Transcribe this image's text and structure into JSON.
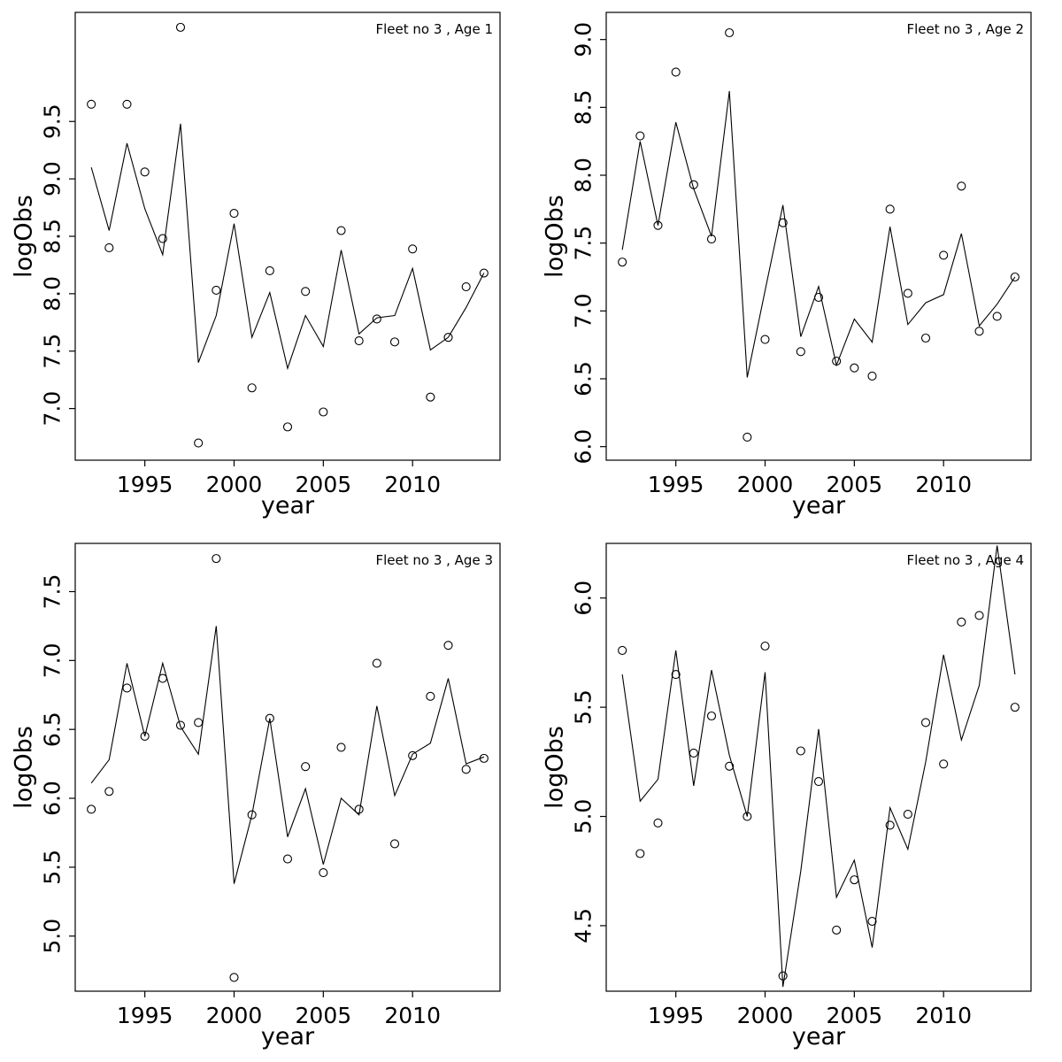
{
  "page": {
    "background": "#ffffff",
    "foreground": "#000000"
  },
  "chart_data": [
    {
      "type": "line",
      "title": "Fleet no 3 , Age 1",
      "xlabel": "year",
      "ylabel": "logObs",
      "grid": false,
      "legend": "none",
      "xlim": [
        1991.1,
        2014.9
      ],
      "ylim": [
        6.55,
        10.45
      ],
      "xticks": [
        1995,
        2000,
        2005,
        2010
      ],
      "yticks": [
        7.0,
        7.5,
        8.0,
        8.5,
        9.0,
        9.5
      ],
      "x": [
        1992,
        1993,
        1994,
        1995,
        1996,
        1997,
        1998,
        1999,
        2000,
        2001,
        2002,
        2003,
        2004,
        2005,
        2006,
        2007,
        2008,
        2009,
        2010,
        2011,
        2012,
        2013,
        2014
      ],
      "series": [
        {
          "name": "observed",
          "type": "scatter",
          "marker": "open-circle",
          "values": [
            9.65,
            8.4,
            9.65,
            9.06,
            8.48,
            10.32,
            6.7,
            8.03,
            8.7,
            7.18,
            8.2,
            6.84,
            8.02,
            6.97,
            8.55,
            7.59,
            7.78,
            7.58,
            8.39,
            7.1,
            7.62,
            8.06,
            8.18
          ]
        },
        {
          "name": "fitted",
          "type": "line",
          "values": [
            9.1,
            8.55,
            9.31,
            8.74,
            8.34,
            9.48,
            7.4,
            7.81,
            8.61,
            7.62,
            8.01,
            7.35,
            7.81,
            7.54,
            8.38,
            7.65,
            7.79,
            7.81,
            8.22,
            7.51,
            7.62,
            7.88,
            8.18
          ]
        }
      ]
    },
    {
      "type": "line",
      "title": "Fleet no 3 , Age 2",
      "xlabel": "year",
      "ylabel": "logObs",
      "grid": false,
      "legend": "none",
      "xlim": [
        1991.1,
        2014.9
      ],
      "ylim": [
        5.9,
        9.2
      ],
      "xticks": [
        1995,
        2000,
        2005,
        2010
      ],
      "yticks": [
        6.0,
        6.5,
        7.0,
        7.5,
        8.0,
        8.5,
        9.0
      ],
      "x": [
        1992,
        1993,
        1994,
        1995,
        1996,
        1997,
        1998,
        1999,
        2000,
        2001,
        2002,
        2003,
        2004,
        2005,
        2006,
        2007,
        2008,
        2009,
        2010,
        2011,
        2012,
        2013,
        2014
      ],
      "series": [
        {
          "name": "observed",
          "type": "scatter",
          "marker": "open-circle",
          "values": [
            7.36,
            8.29,
            7.63,
            8.76,
            7.93,
            7.53,
            9.05,
            6.07,
            6.79,
            7.65,
            6.7,
            7.1,
            6.63,
            6.58,
            6.52,
            7.75,
            7.13,
            6.8,
            7.41,
            7.92,
            6.85,
            6.96,
            7.25
          ]
        },
        {
          "name": "fitted",
          "type": "line",
          "values": [
            7.45,
            8.25,
            7.63,
            8.39,
            7.9,
            7.55,
            8.62,
            6.51,
            7.15,
            7.78,
            6.81,
            7.18,
            6.6,
            6.94,
            6.77,
            7.62,
            6.9,
            7.06,
            7.12,
            7.57,
            6.89,
            7.05,
            7.25
          ]
        }
      ]
    },
    {
      "type": "line",
      "title": "Fleet no 3 , Age 3",
      "xlabel": "year",
      "ylabel": "logObs",
      "grid": false,
      "legend": "none",
      "xlim": [
        1991.1,
        2014.9
      ],
      "ylim": [
        4.6,
        7.85
      ],
      "xticks": [
        1995,
        2000,
        2005,
        2010
      ],
      "yticks": [
        5.0,
        5.5,
        6.0,
        6.5,
        7.0,
        7.5
      ],
      "x": [
        1992,
        1993,
        1994,
        1995,
        1996,
        1997,
        1998,
        1999,
        2000,
        2001,
        2002,
        2003,
        2004,
        2005,
        2006,
        2007,
        2008,
        2009,
        2010,
        2011,
        2012,
        2013,
        2014
      ],
      "series": [
        {
          "name": "observed",
          "type": "scatter",
          "marker": "open-circle",
          "values": [
            5.92,
            6.05,
            6.8,
            6.45,
            6.87,
            6.53,
            6.55,
            7.74,
            4.7,
            5.88,
            6.58,
            5.56,
            6.23,
            5.46,
            6.37,
            5.92,
            6.98,
            5.67,
            6.31,
            6.74,
            7.11,
            6.21,
            6.29
          ]
        },
        {
          "name": "fitted",
          "type": "line",
          "values": [
            6.11,
            6.28,
            6.98,
            6.45,
            6.98,
            6.52,
            6.32,
            7.25,
            5.38,
            5.88,
            6.58,
            5.72,
            6.07,
            5.52,
            6.0,
            5.88,
            6.67,
            6.02,
            6.32,
            6.4,
            6.87,
            6.25,
            6.3
          ]
        }
      ]
    },
    {
      "type": "line",
      "title": "Fleet no 3 , Age 4",
      "xlabel": "year",
      "ylabel": "logObs",
      "grid": false,
      "legend": "none",
      "xlim": [
        1991.1,
        2014.9
      ],
      "ylim": [
        4.2,
        6.25
      ],
      "xticks": [
        1995,
        2000,
        2005,
        2010
      ],
      "yticks": [
        4.5,
        5.0,
        5.5,
        6.0
      ],
      "x": [
        1992,
        1993,
        1994,
        1995,
        1996,
        1997,
        1998,
        1999,
        2000,
        2001,
        2002,
        2003,
        2004,
        2005,
        2006,
        2007,
        2008,
        2009,
        2010,
        2011,
        2012,
        2013,
        2014
      ],
      "series": [
        {
          "name": "observed",
          "type": "scatter",
          "marker": "open-circle",
          "values": [
            5.76,
            4.83,
            4.97,
            5.65,
            5.29,
            5.46,
            5.23,
            5.0,
            5.78,
            4.27,
            5.3,
            5.16,
            4.48,
            4.71,
            4.52,
            4.96,
            5.01,
            5.43,
            5.24,
            5.89,
            5.92,
            null,
            5.5
          ]
        },
        {
          "name": "fitted",
          "type": "line",
          "values": [
            5.65,
            5.07,
            5.17,
            5.76,
            5.14,
            5.67,
            5.28,
            5.0,
            5.66,
            4.22,
            4.75,
            5.4,
            4.63,
            4.8,
            4.4,
            5.04,
            4.85,
            5.25,
            5.74,
            5.35,
            5.6,
            6.24,
            5.65
          ]
        }
      ]
    }
  ]
}
